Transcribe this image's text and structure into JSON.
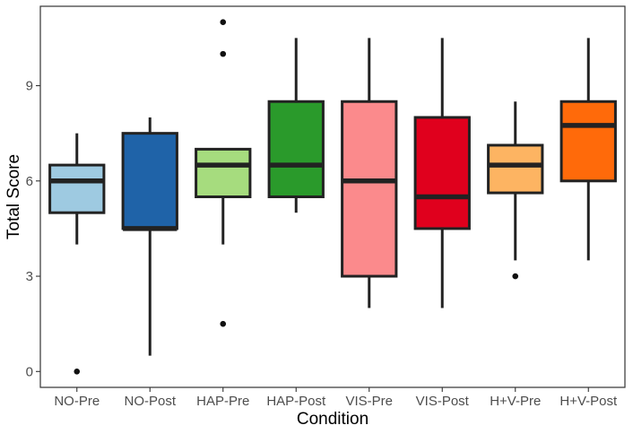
{
  "chart_data": {
    "type": "boxplot",
    "title": "",
    "xlabel": "Condition",
    "ylabel": "Total Score",
    "ylim": [
      -0.5,
      11.5
    ],
    "yticks": [
      0,
      3,
      6,
      9
    ],
    "grid": false,
    "legend": "none",
    "categories": [
      "NO-Pre",
      "NO-Post",
      "HAP-Pre",
      "HAP-Post",
      "VIS-Pre",
      "VIS-Post",
      "H+V-Pre",
      "H+V-Post"
    ],
    "colors": [
      "#9ecae1",
      "#1f63a8",
      "#a6dc7e",
      "#2a9a2b",
      "#fb8a8c",
      "#e0001d",
      "#fdb462",
      "#ff6a0a"
    ],
    "series": [
      {
        "q1": 5.0,
        "median": 6.0,
        "q3": 6.5,
        "whisker_low": 4.0,
        "whisker_high": 7.5,
        "outliers": [
          0
        ]
      },
      {
        "q1": 4.5,
        "median": 4.5,
        "q3": 7.5,
        "whisker_low": 0.5,
        "whisker_high": 8.0,
        "outliers": []
      },
      {
        "q1": 5.5,
        "median": 6.5,
        "q3": 7.0,
        "whisker_low": 4.0,
        "whisker_high": 7.0,
        "outliers": [
          11.0,
          10.0,
          1.5
        ]
      },
      {
        "q1": 5.5,
        "median": 6.5,
        "q3": 8.5,
        "whisker_low": 5.0,
        "whisker_high": 10.5,
        "outliers": []
      },
      {
        "q1": 3.0,
        "median": 6.0,
        "q3": 8.5,
        "whisker_low": 2.0,
        "whisker_high": 10.5,
        "outliers": []
      },
      {
        "q1": 4.5,
        "median": 5.5,
        "q3": 8.0,
        "whisker_low": 2.0,
        "whisker_high": 10.5,
        "outliers": []
      },
      {
        "q1": 5.625,
        "median": 6.5,
        "q3": 7.125,
        "whisker_low": 3.5,
        "whisker_high": 8.5,
        "outliers": [
          3.0
        ]
      },
      {
        "q1": 6.0,
        "median": 7.75,
        "q3": 8.5,
        "whisker_low": 3.5,
        "whisker_high": 10.5,
        "outliers": []
      }
    ]
  }
}
